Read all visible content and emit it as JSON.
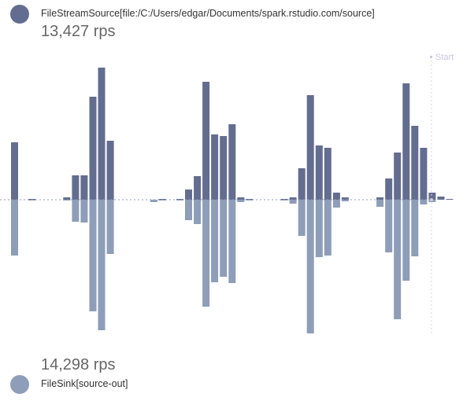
{
  "source": {
    "name": "FileStreamSource[file:/C:/Users/edgar/Documents/spark.rstudio.com/source]",
    "rate": "13,427 rps",
    "color": "#636d8f"
  },
  "sink": {
    "name": "FileSink[source-out]",
    "rate": "14,298 rps",
    "color": "#8e9db8"
  },
  "chart_data": {
    "type": "bar",
    "title": "",
    "xlabel": "",
    "ylabel": "",
    "marker_label": "Start",
    "series": [
      {
        "name": "FileStreamSource[file:/C:/Users/edgar/Documents/spark.rstudio.com/source]",
        "direction": "up",
        "color": "#636d8f",
        "values": [
          73,
          0,
          1,
          0,
          0,
          0,
          3,
          31,
          31,
          131,
          168,
          75,
          0,
          0,
          0,
          0,
          0,
          1,
          0,
          1,
          13,
          30,
          150,
          83,
          81,
          96,
          3,
          1,
          0,
          0,
          0,
          1,
          3,
          40,
          133,
          69,
          66,
          9,
          3,
          0,
          0,
          0,
          3,
          27,
          60,
          148,
          94,
          66,
          9,
          4,
          1
        ]
      },
      {
        "name": "FileSink[source-out]",
        "direction": "down",
        "color": "#8e9db8",
        "values": [
          71,
          0,
          1,
          0,
          0,
          0,
          1,
          28,
          29,
          142,
          166,
          69,
          0,
          0,
          0,
          0,
          3,
          1,
          0,
          1,
          26,
          31,
          136,
          105,
          98,
          106,
          3,
          1,
          0,
          0,
          0,
          1,
          5,
          46,
          170,
          73,
          71,
          10,
          2,
          0,
          0,
          0,
          9,
          67,
          152,
          103,
          72,
          6,
          3,
          0,
          0
        ]
      }
    ]
  }
}
